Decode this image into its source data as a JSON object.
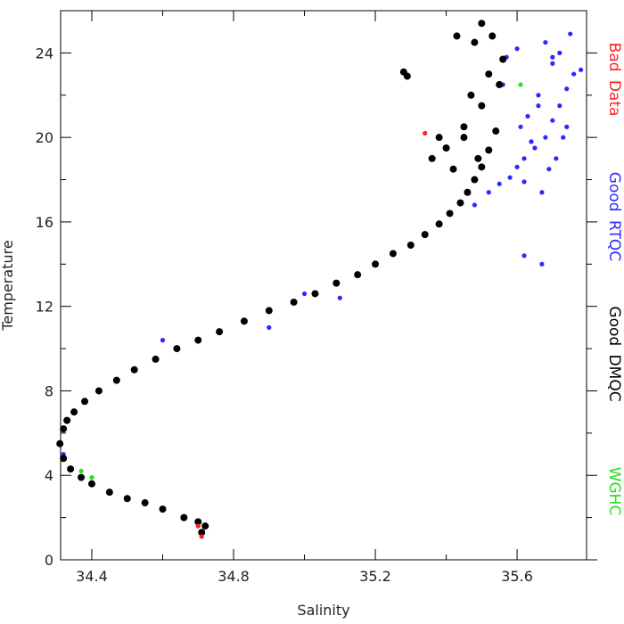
{
  "chart_data": {
    "type": "scatter",
    "x_label": "Salinity",
    "y_label": "Temperature",
    "xlim": [
      34.312,
      35.796
    ],
    "ylim": [
      0,
      26
    ],
    "xticks": [
      34.4,
      34.8,
      35.2,
      35.6
    ],
    "xminorticks": [
      34.6,
      35.0,
      35.4
    ],
    "yticks": [
      0,
      4,
      8,
      12,
      16,
      20,
      24
    ],
    "yminorticks": [
      2,
      6,
      10,
      14,
      18,
      22
    ],
    "legend": "right",
    "series": [
      {
        "name": "Good RTQC",
        "color": "#2a2aff",
        "x": [
          35.48,
          35.52,
          35.55,
          35.58,
          35.6,
          35.62,
          35.65,
          35.68,
          35.7,
          35.72,
          35.74,
          35.76,
          35.78,
          35.66,
          35.7,
          35.63,
          35.6,
          35.72,
          35.75,
          35.68,
          35.57,
          35.64,
          35.69,
          35.74,
          35.62,
          35.67,
          35.71,
          35.56,
          35.61,
          35.66,
          34.32,
          34.6,
          34.9,
          35.1,
          35.0,
          35.7,
          35.73,
          35.62,
          35.67
        ],
        "values": [
          16.8,
          17.4,
          17.8,
          18.1,
          18.6,
          19.0,
          19.5,
          20.0,
          20.8,
          21.5,
          22.3,
          23.0,
          23.2,
          22.0,
          23.5,
          21.0,
          24.2,
          24.0,
          24.9,
          24.5,
          23.8,
          19.8,
          18.5,
          20.5,
          17.9,
          17.4,
          19.0,
          22.5,
          20.5,
          21.5,
          5.0,
          10.4,
          11.0,
          12.4,
          12.6,
          23.8,
          20.0,
          14.4,
          14.0
        ]
      },
      {
        "name": "Good DMQC",
        "color": "#000000",
        "x": [
          34.71,
          34.72,
          34.7,
          34.66,
          34.6,
          34.55,
          34.5,
          34.45,
          34.4,
          34.37,
          34.34,
          34.32,
          34.31,
          34.32,
          34.33,
          34.35,
          34.38,
          34.42,
          34.47,
          34.52,
          34.58,
          34.64,
          34.7,
          34.76,
          34.83,
          34.9,
          34.97,
          35.03,
          35.09,
          35.15,
          35.2,
          35.25,
          35.3,
          35.34,
          35.38,
          35.41,
          35.44,
          35.46,
          35.48,
          35.5,
          35.52,
          35.54,
          35.38,
          35.4,
          35.42,
          35.36,
          35.45,
          35.5,
          35.47,
          35.52,
          35.55,
          35.48,
          35.43,
          35.5,
          35.53,
          35.56,
          35.45,
          35.49,
          35.28,
          35.29
        ],
        "values": [
          1.3,
          1.6,
          1.8,
          2.0,
          2.4,
          2.7,
          2.9,
          3.2,
          3.6,
          3.9,
          4.3,
          4.8,
          5.5,
          6.2,
          6.6,
          7.0,
          7.5,
          8.0,
          8.5,
          9.0,
          9.5,
          10.0,
          10.4,
          10.8,
          11.3,
          11.8,
          12.2,
          12.6,
          13.1,
          13.5,
          14.0,
          14.5,
          14.9,
          15.4,
          15.9,
          16.4,
          16.9,
          17.4,
          18.0,
          18.6,
          19.4,
          20.3,
          20.0,
          19.5,
          18.5,
          19.0,
          20.5,
          21.5,
          22.0,
          23.0,
          22.5,
          24.5,
          24.8,
          25.4,
          24.8,
          23.7,
          20.0,
          19.0,
          23.1,
          22.9
        ]
      },
      {
        "name": "Bad Data",
        "color": "#ff2020",
        "x": [
          34.71,
          34.7,
          35.34
        ],
        "values": [
          1.1,
          1.6,
          20.2
        ]
      },
      {
        "name": "WGHC",
        "color": "#20e020",
        "x": [
          35.61,
          34.37,
          34.4
        ],
        "values": [
          22.5,
          4.2,
          3.9
        ]
      }
    ],
    "legend_order": [
      "Bad Data",
      "Good RTQC",
      "Good DMQC",
      "WGHC"
    ]
  }
}
